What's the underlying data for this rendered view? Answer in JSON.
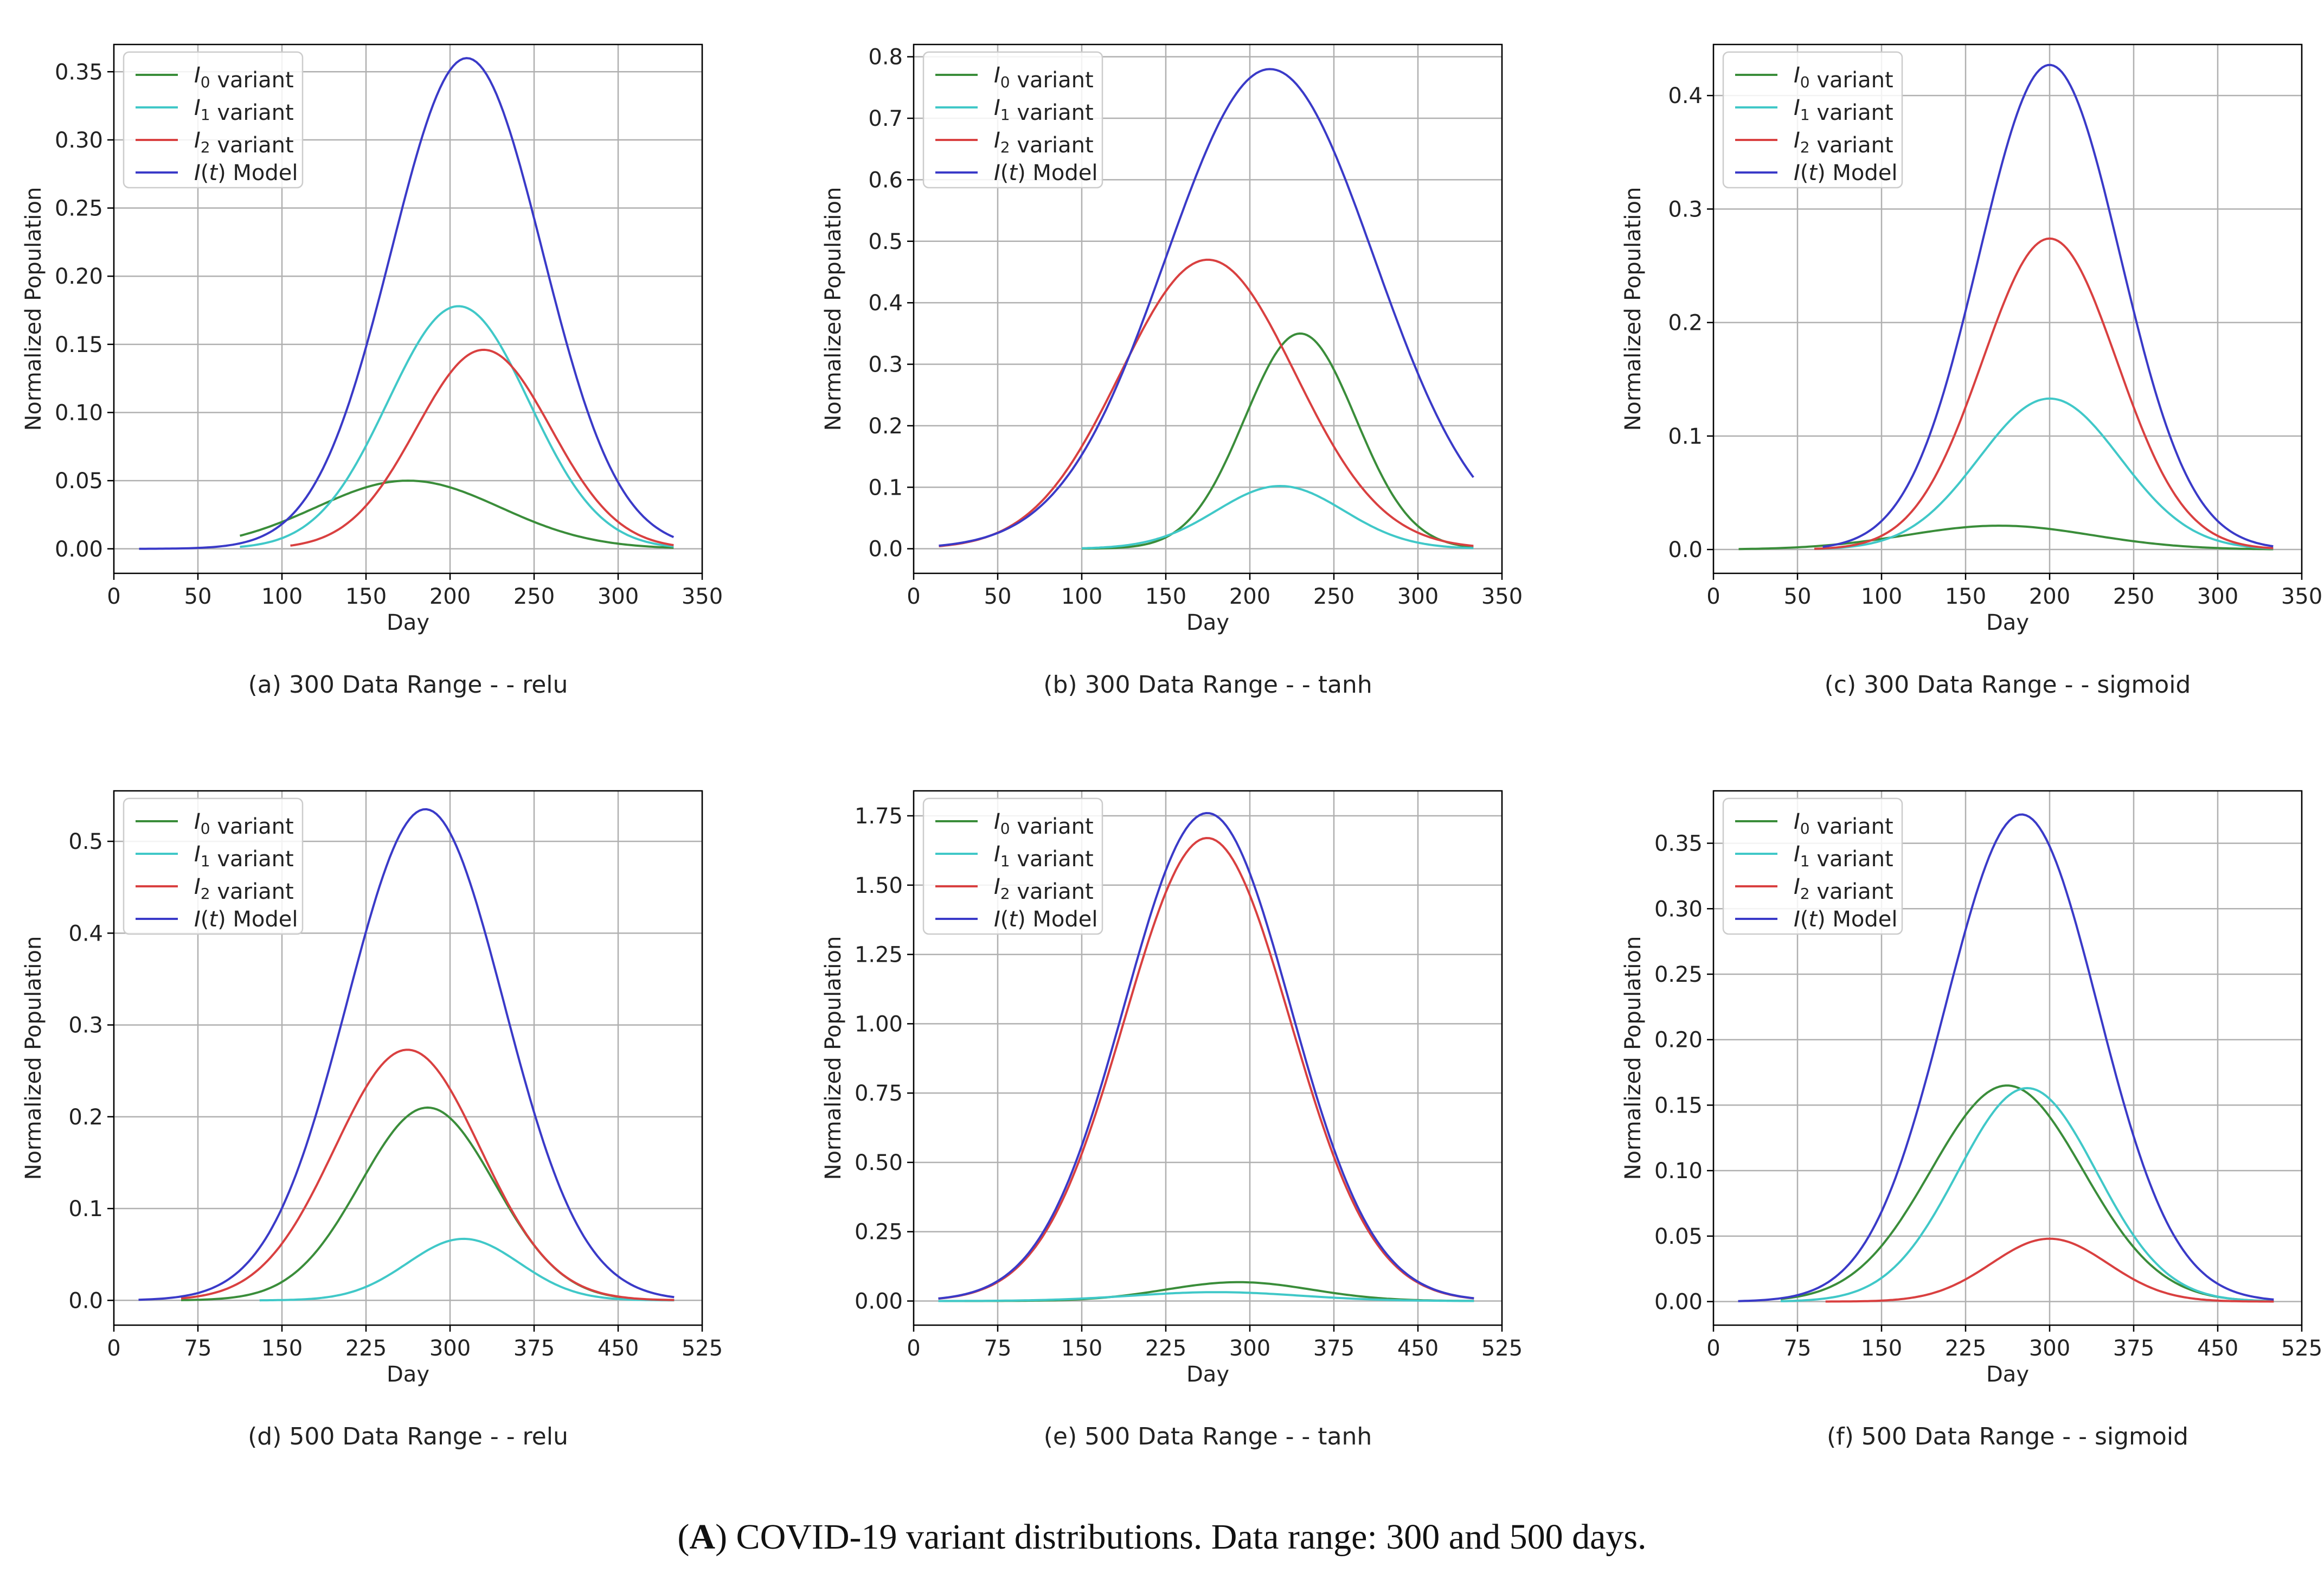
{
  "colors": {
    "I0": "#3a8d3a",
    "I1": "#40c8c8",
    "I2": "#d94040",
    "It": "#3a3ac8"
  },
  "caption": {
    "prefix": "(",
    "bold": "A",
    "rest": ") COVID-19 variant distributions. Data range: 300 and 500 days."
  },
  "chart_data": [
    {
      "type": "line",
      "subtitle": "(a) 300 Data Range -  - relu",
      "xlabel": "Day",
      "ylabel": "Normalized Population",
      "xlim": [
        0,
        350
      ],
      "ylim": [
        -0.018,
        0.37
      ],
      "xticks": [
        0,
        50,
        100,
        150,
        200,
        250,
        300,
        350
      ],
      "yticks": [
        0.0,
        0.05,
        0.1,
        0.15,
        0.2,
        0.25,
        0.3,
        0.35
      ],
      "ytick_labels": [
        "0.00",
        "0.05",
        "0.10",
        "0.15",
        "0.20",
        "0.25",
        "0.30",
        "0.35"
      ],
      "grid": true,
      "legend": "top-left",
      "series": [
        {
          "key": "I0",
          "name": "I0 variant",
          "x_start": 75,
          "x_end": 333,
          "peak_x": 175,
          "peak": 0.05,
          "sigma": 55
        },
        {
          "key": "I1",
          "name": "I1 variant",
          "x_start": 75,
          "x_end": 333,
          "peak_x": 205,
          "peak": 0.178,
          "sigma": 42
        },
        {
          "key": "I2",
          "name": "I2 variant",
          "x_start": 105,
          "x_end": 333,
          "peak_x": 220,
          "peak": 0.146,
          "sigma": 40
        },
        {
          "key": "It",
          "name": "I(t) Model",
          "x_start": 15,
          "x_end": 333,
          "peak_x": 210,
          "peak": 0.36,
          "sigma": 45
        }
      ]
    },
    {
      "type": "line",
      "subtitle": "(b) 300 Data Range -  - tanh",
      "xlabel": "Day",
      "ylabel": "Normalized Population",
      "xlim": [
        0,
        350
      ],
      "ylim": [
        -0.04,
        0.82
      ],
      "xticks": [
        0,
        50,
        100,
        150,
        200,
        250,
        300,
        350
      ],
      "yticks": [
        0.0,
        0.1,
        0.2,
        0.3,
        0.4,
        0.5,
        0.6,
        0.7,
        0.8
      ],
      "ytick_labels": [
        "0.0",
        "0.1",
        "0.2",
        "0.3",
        "0.4",
        "0.5",
        "0.6",
        "0.7",
        "0.8"
      ],
      "grid": true,
      "legend": "top-left",
      "series": [
        {
          "key": "I0",
          "name": "I0 variant",
          "x_start": 100,
          "x_end": 333,
          "peak_x": 230,
          "peak": 0.35,
          "sigma": 33
        },
        {
          "key": "I1",
          "name": "I1 variant",
          "x_start": 100,
          "x_end": 333,
          "peak_x": 218,
          "peak": 0.102,
          "sigma": 38
        },
        {
          "key": "I2",
          "name": "I2 variant",
          "x_start": 15,
          "x_end": 333,
          "peak_x": 175,
          "peak": 0.47,
          "sigma": 52
        },
        {
          "key": "It",
          "name": "I(t) Model",
          "x_start": 15,
          "x_end": 333,
          "peak_x": 212,
          "peak": 0.78,
          "sigma": 62
        }
      ]
    },
    {
      "type": "line",
      "subtitle": "(c) 300 Data Range -  - sigmoid",
      "xlabel": "Day",
      "ylabel": "Normalized Population",
      "xlim": [
        0,
        350
      ],
      "ylim": [
        -0.021,
        0.445
      ],
      "xticks": [
        0,
        50,
        100,
        150,
        200,
        250,
        300,
        350
      ],
      "yticks": [
        0.0,
        0.1,
        0.2,
        0.3,
        0.4
      ],
      "ytick_labels": [
        "0.0",
        "0.1",
        "0.2",
        "0.3",
        "0.4"
      ],
      "grid": true,
      "legend": "top-left",
      "series": [
        {
          "key": "I0",
          "name": "I0 variant",
          "x_start": 15,
          "x_end": 333,
          "peak_x": 170,
          "peak": 0.021,
          "sigma": 55
        },
        {
          "key": "I1",
          "name": "I1 variant",
          "x_start": 60,
          "x_end": 333,
          "peak_x": 200,
          "peak": 0.133,
          "sigma": 42
        },
        {
          "key": "I2",
          "name": "I2 variant",
          "x_start": 60,
          "x_end": 333,
          "peak_x": 200,
          "peak": 0.274,
          "sigma": 40
        },
        {
          "key": "It",
          "name": "I(t) Model",
          "x_start": 65,
          "x_end": 333,
          "peak_x": 200,
          "peak": 0.427,
          "sigma": 42
        }
      ]
    },
    {
      "type": "line",
      "subtitle": "(d) 500 Data Range -  - relu",
      "xlabel": "Day",
      "ylabel": "Normalized Population",
      "xlim": [
        0,
        525
      ],
      "ylim": [
        -0.027,
        0.555
      ],
      "xticks": [
        0,
        75,
        150,
        225,
        300,
        375,
        450,
        525
      ],
      "yticks": [
        0.0,
        0.1,
        0.2,
        0.3,
        0.4,
        0.5
      ],
      "ytick_labels": [
        "0.0",
        "0.1",
        "0.2",
        "0.3",
        "0.4",
        "0.5"
      ],
      "grid": true,
      "legend": "top-left",
      "series": [
        {
          "key": "I0",
          "name": "I0 variant",
          "x_start": 60,
          "x_end": 500,
          "peak_x": 280,
          "peak": 0.21,
          "sigma": 60
        },
        {
          "key": "I1",
          "name": "I1 variant",
          "x_start": 130,
          "x_end": 500,
          "peak_x": 312,
          "peak": 0.067,
          "sigma": 50
        },
        {
          "key": "I2",
          "name": "I2 variant",
          "x_start": 60,
          "x_end": 500,
          "peak_x": 262,
          "peak": 0.273,
          "sigma": 65
        },
        {
          "key": "It",
          "name": "I(t) Model",
          "x_start": 22,
          "x_end": 500,
          "peak_x": 278,
          "peak": 0.535,
          "sigma": 70
        }
      ]
    },
    {
      "type": "line",
      "subtitle": "(e) 500 Data Range -  - tanh",
      "xlabel": "Day",
      "ylabel": "Normalized Population",
      "xlim": [
        0,
        525
      ],
      "ylim": [
        -0.087,
        1.84
      ],
      "xticks": [
        0,
        75,
        150,
        225,
        300,
        375,
        450,
        525
      ],
      "yticks": [
        0.0,
        0.25,
        0.5,
        0.75,
        1.0,
        1.25,
        1.5,
        1.75
      ],
      "ytick_labels": [
        "0.00",
        "0.25",
        "0.50",
        "0.75",
        "1.00",
        "1.25",
        "1.50",
        "1.75"
      ],
      "grid": true,
      "legend": "top-left",
      "series": [
        {
          "key": "I0",
          "name": "I0 variant",
          "x_start": 22,
          "x_end": 500,
          "peak_x": 290,
          "peak": 0.068,
          "sigma": 65
        },
        {
          "key": "I1",
          "name": "I1 variant",
          "x_start": 22,
          "x_end": 500,
          "peak_x": 270,
          "peak": 0.032,
          "sigma": 75
        },
        {
          "key": "I2",
          "name": "I2 variant",
          "x_start": 22,
          "x_end": 500,
          "peak_x": 262,
          "peak": 1.67,
          "sigma": 74
        },
        {
          "key": "It",
          "name": "I(t) Model",
          "x_start": 22,
          "x_end": 500,
          "peak_x": 262,
          "peak": 1.76,
          "sigma": 74
        }
      ]
    },
    {
      "type": "line",
      "subtitle": "(f) 500 Data Range -  - sigmoid",
      "xlabel": "Day",
      "ylabel": "Normalized Population",
      "xlim": [
        0,
        525
      ],
      "ylim": [
        -0.018,
        0.39
      ],
      "xticks": [
        0,
        75,
        150,
        225,
        300,
        375,
        450,
        525
      ],
      "yticks": [
        0.0,
        0.05,
        0.1,
        0.15,
        0.2,
        0.25,
        0.3,
        0.35
      ],
      "ytick_labels": [
        "0.00",
        "0.05",
        "0.10",
        "0.15",
        "0.20",
        "0.25",
        "0.30",
        "0.35"
      ],
      "grid": true,
      "legend": "top-left",
      "series": [
        {
          "key": "I0",
          "name": "I0 variant",
          "x_start": 60,
          "x_end": 500,
          "peak_x": 262,
          "peak": 0.165,
          "sigma": 68
        },
        {
          "key": "I1",
          "name": "I1 variant",
          "x_start": 60,
          "x_end": 500,
          "peak_x": 280,
          "peak": 0.163,
          "sigma": 62
        },
        {
          "key": "I2",
          "name": "I2 variant",
          "x_start": 100,
          "x_end": 500,
          "peak_x": 300,
          "peak": 0.048,
          "sigma": 52
        },
        {
          "key": "It",
          "name": "I(t) Model",
          "x_start": 22,
          "x_end": 500,
          "peak_x": 275,
          "peak": 0.372,
          "sigma": 68
        }
      ]
    }
  ],
  "legend_labels": [
    {
      "sym": "I",
      "sub": "0",
      "paren": "",
      "text": " variant"
    },
    {
      "sym": "I",
      "sub": "1",
      "paren": "",
      "text": " variant"
    },
    {
      "sym": "I",
      "sub": "2",
      "paren": "",
      "text": " variant"
    },
    {
      "sym": "I",
      "sub": "",
      "paren": "(t)",
      "text": " Model"
    }
  ]
}
